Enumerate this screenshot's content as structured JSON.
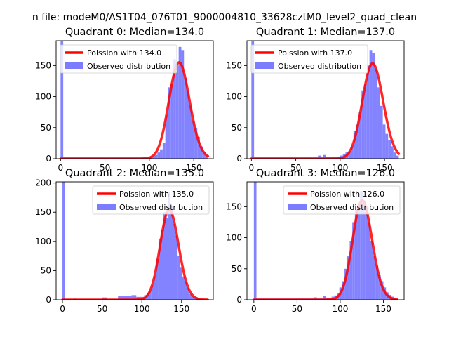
{
  "figure_title": "n file: modeM0/AS1T04_076T01_9000004810_33628cztM0_level2_quad_clean",
  "chart_data": [
    {
      "type": "histogram",
      "title": "Quadrant 0: Median=134.0",
      "xlim": [
        -5,
        172
      ],
      "ylim": [
        0,
        190
      ],
      "xticks": [
        0,
        50,
        100,
        150
      ],
      "yticks": [
        0,
        50,
        100,
        150
      ],
      "legend_position": "upper left",
      "legend_entries": [
        "Poission with 134.0",
        "Observed distribution"
      ],
      "bins": [
        {
          "x0": 0,
          "x1": 3,
          "count": 190
        },
        {
          "x0": 3,
          "x1": 100,
          "count": 2
        },
        {
          "x0": 100,
          "x1": 103,
          "count": 3
        },
        {
          "x0": 103,
          "x1": 106,
          "count": 4
        },
        {
          "x0": 106,
          "x1": 109,
          "count": 6
        },
        {
          "x0": 109,
          "x1": 112,
          "count": 10
        },
        {
          "x0": 112,
          "x1": 115,
          "count": 15
        },
        {
          "x0": 115,
          "x1": 118,
          "count": 25
        },
        {
          "x0": 118,
          "x1": 121,
          "count": 70
        },
        {
          "x0": 121,
          "x1": 124,
          "count": 115
        },
        {
          "x0": 124,
          "x1": 127,
          "count": 120
        },
        {
          "x0": 127,
          "x1": 130,
          "count": 160
        },
        {
          "x0": 130,
          "x1": 133,
          "count": 150
        },
        {
          "x0": 133,
          "x1": 136,
          "count": 180
        },
        {
          "x0": 136,
          "x1": 139,
          "count": 175
        },
        {
          "x0": 139,
          "x1": 142,
          "count": 130
        },
        {
          "x0": 142,
          "x1": 145,
          "count": 110
        },
        {
          "x0": 145,
          "x1": 148,
          "count": 85
        },
        {
          "x0": 148,
          "x1": 151,
          "count": 60
        },
        {
          "x0": 151,
          "x1": 154,
          "count": 50
        },
        {
          "x0": 154,
          "x1": 157,
          "count": 35
        },
        {
          "x0": 157,
          "x1": 160,
          "count": 20
        },
        {
          "x0": 160,
          "x1": 163,
          "count": 10
        },
        {
          "x0": 163,
          "x1": 166,
          "count": 5
        }
      ],
      "poisson_mean": 134.0,
      "poisson_scale": 4500,
      "curve_x_range": [
        0,
        166
      ]
    },
    {
      "type": "histogram",
      "title": "Quadrant 1: Median=137.0",
      "xlim": [
        -5,
        172
      ],
      "ylim": [
        0,
        190
      ],
      "xticks": [
        0,
        50,
        100,
        150
      ],
      "yticks": [
        0,
        50,
        100,
        150
      ],
      "legend_position": "upper left",
      "legend_entries": [
        "Poission with 137.0",
        "Observed distribution"
      ],
      "bins": [
        {
          "x0": 0,
          "x1": 3,
          "count": 190
        },
        {
          "x0": 3,
          "x1": 75,
          "count": 2
        },
        {
          "x0": 75,
          "x1": 78,
          "count": 5
        },
        {
          "x0": 78,
          "x1": 81,
          "count": 2
        },
        {
          "x0": 81,
          "x1": 84,
          "count": 6
        },
        {
          "x0": 84,
          "x1": 100,
          "count": 3
        },
        {
          "x0": 100,
          "x1": 103,
          "count": 5
        },
        {
          "x0": 103,
          "x1": 106,
          "count": 8
        },
        {
          "x0": 106,
          "x1": 109,
          "count": 10
        },
        {
          "x0": 109,
          "x1": 112,
          "count": 12
        },
        {
          "x0": 112,
          "x1": 115,
          "count": 20
        },
        {
          "x0": 115,
          "x1": 118,
          "count": 45
        },
        {
          "x0": 118,
          "x1": 121,
          "count": 55
        },
        {
          "x0": 121,
          "x1": 124,
          "count": 75
        },
        {
          "x0": 124,
          "x1": 127,
          "count": 110
        },
        {
          "x0": 127,
          "x1": 130,
          "count": 120
        },
        {
          "x0": 130,
          "x1": 133,
          "count": 150
        },
        {
          "x0": 133,
          "x1": 136,
          "count": 175
        },
        {
          "x0": 136,
          "x1": 139,
          "count": 170
        },
        {
          "x0": 139,
          "x1": 142,
          "count": 145
        },
        {
          "x0": 142,
          "x1": 145,
          "count": 115
        },
        {
          "x0": 145,
          "x1": 148,
          "count": 85
        },
        {
          "x0": 148,
          "x1": 151,
          "count": 55
        },
        {
          "x0": 151,
          "x1": 154,
          "count": 40
        },
        {
          "x0": 154,
          "x1": 157,
          "count": 30
        },
        {
          "x0": 157,
          "x1": 160,
          "count": 20
        },
        {
          "x0": 160,
          "x1": 163,
          "count": 10
        },
        {
          "x0": 163,
          "x1": 166,
          "count": 5
        }
      ],
      "poisson_mean": 137.0,
      "poisson_scale": 4500,
      "curve_x_range": [
        0,
        166
      ]
    },
    {
      "type": "histogram",
      "title": "Quadrant 2: Median=135.0",
      "xlim": [
        -8,
        190
      ],
      "ylim": [
        0,
        202
      ],
      "xticks": [
        0,
        50,
        100,
        150
      ],
      "yticks": [
        0,
        50,
        100,
        150,
        200
      ],
      "legend_position": "upper right",
      "legend_entries": [
        "Poission with 135.0",
        "Observed distribution"
      ],
      "bins": [
        {
          "x0": 0,
          "x1": 3,
          "count": 202
        },
        {
          "x0": 3,
          "x1": 15,
          "count": 1
        },
        {
          "x0": 15,
          "x1": 18,
          "count": 2
        },
        {
          "x0": 18,
          "x1": 50,
          "count": 1
        },
        {
          "x0": 50,
          "x1": 56,
          "count": 4
        },
        {
          "x0": 56,
          "x1": 70,
          "count": 1
        },
        {
          "x0": 70,
          "x1": 75,
          "count": 7
        },
        {
          "x0": 75,
          "x1": 87,
          "count": 6
        },
        {
          "x0": 87,
          "x1": 93,
          "count": 8
        },
        {
          "x0": 93,
          "x1": 100,
          "count": 5
        },
        {
          "x0": 100,
          "x1": 103,
          "count": 5
        },
        {
          "x0": 103,
          "x1": 106,
          "count": 8
        },
        {
          "x0": 106,
          "x1": 109,
          "count": 12
        },
        {
          "x0": 109,
          "x1": 112,
          "count": 15
        },
        {
          "x0": 112,
          "x1": 115,
          "count": 25
        },
        {
          "x0": 115,
          "x1": 118,
          "count": 40
        },
        {
          "x0": 118,
          "x1": 121,
          "count": 70
        },
        {
          "x0": 121,
          "x1": 124,
          "count": 105
        },
        {
          "x0": 124,
          "x1": 127,
          "count": 120
        },
        {
          "x0": 127,
          "x1": 130,
          "count": 150
        },
        {
          "x0": 130,
          "x1": 133,
          "count": 140
        },
        {
          "x0": 133,
          "x1": 136,
          "count": 185
        },
        {
          "x0": 136,
          "x1": 139,
          "count": 160
        },
        {
          "x0": 139,
          "x1": 142,
          "count": 130
        },
        {
          "x0": 142,
          "x1": 145,
          "count": 110
        },
        {
          "x0": 145,
          "x1": 148,
          "count": 75
        },
        {
          "x0": 148,
          "x1": 151,
          "count": 55
        },
        {
          "x0": 151,
          "x1": 154,
          "count": 40
        },
        {
          "x0": 154,
          "x1": 157,
          "count": 30
        },
        {
          "x0": 157,
          "x1": 160,
          "count": 20
        },
        {
          "x0": 160,
          "x1": 163,
          "count": 10
        },
        {
          "x0": 163,
          "x1": 166,
          "count": 6
        },
        {
          "x0": 166,
          "x1": 169,
          "count": 4
        },
        {
          "x0": 169,
          "x1": 172,
          "count": 3
        },
        {
          "x0": 172,
          "x1": 175,
          "count": 2
        }
      ],
      "poisson_mean": 135.0,
      "poisson_scale": 4500,
      "curve_x_range": [
        0,
        183
      ]
    },
    {
      "type": "histogram",
      "title": "Quadrant 3: Median=126.0",
      "xlim": [
        -8,
        174
      ],
      "ylim": [
        0,
        190
      ],
      "xticks": [
        0,
        50,
        100,
        150
      ],
      "yticks": [
        0,
        50,
        100,
        150
      ],
      "legend_position": "upper right",
      "legend_entries": [
        "Poission with 126.0",
        "Observed distribution"
      ],
      "bins": [
        {
          "x0": 0,
          "x1": 3,
          "count": 190
        },
        {
          "x0": 3,
          "x1": 70,
          "count": 2
        },
        {
          "x0": 70,
          "x1": 73,
          "count": 4
        },
        {
          "x0": 73,
          "x1": 80,
          "count": 2
        },
        {
          "x0": 80,
          "x1": 83,
          "count": 6
        },
        {
          "x0": 83,
          "x1": 90,
          "count": 3
        },
        {
          "x0": 90,
          "x1": 93,
          "count": 5
        },
        {
          "x0": 93,
          "x1": 96,
          "count": 7
        },
        {
          "x0": 96,
          "x1": 99,
          "count": 10
        },
        {
          "x0": 99,
          "x1": 102,
          "count": 20
        },
        {
          "x0": 102,
          "x1": 105,
          "count": 30
        },
        {
          "x0": 105,
          "x1": 108,
          "count": 50
        },
        {
          "x0": 108,
          "x1": 111,
          "count": 70
        },
        {
          "x0": 111,
          "x1": 114,
          "count": 95
        },
        {
          "x0": 114,
          "x1": 117,
          "count": 125
        },
        {
          "x0": 117,
          "x1": 120,
          "count": 145
        },
        {
          "x0": 120,
          "x1": 123,
          "count": 155
        },
        {
          "x0": 123,
          "x1": 126,
          "count": 175
        },
        {
          "x0": 126,
          "x1": 129,
          "count": 160
        },
        {
          "x0": 129,
          "x1": 132,
          "count": 150
        },
        {
          "x0": 132,
          "x1": 135,
          "count": 125
        },
        {
          "x0": 135,
          "x1": 138,
          "count": 95
        },
        {
          "x0": 138,
          "x1": 141,
          "count": 70
        },
        {
          "x0": 141,
          "x1": 144,
          "count": 55
        },
        {
          "x0": 144,
          "x1": 147,
          "count": 40
        },
        {
          "x0": 147,
          "x1": 150,
          "count": 30
        },
        {
          "x0": 150,
          "x1": 153,
          "count": 20
        },
        {
          "x0": 153,
          "x1": 156,
          "count": 12
        },
        {
          "x0": 156,
          "x1": 159,
          "count": 8
        },
        {
          "x0": 159,
          "x1": 162,
          "count": 5
        },
        {
          "x0": 162,
          "x1": 165,
          "count": 3
        }
      ],
      "poisson_mean": 126.0,
      "poisson_scale": 4500,
      "curve_x_range": [
        0,
        166
      ]
    }
  ],
  "colors": {
    "histogram": "#7c7cff",
    "poisson_line": "#ff0000",
    "axis": "#000000",
    "legend_border": "#cccccc",
    "background": "#ffffff"
  }
}
